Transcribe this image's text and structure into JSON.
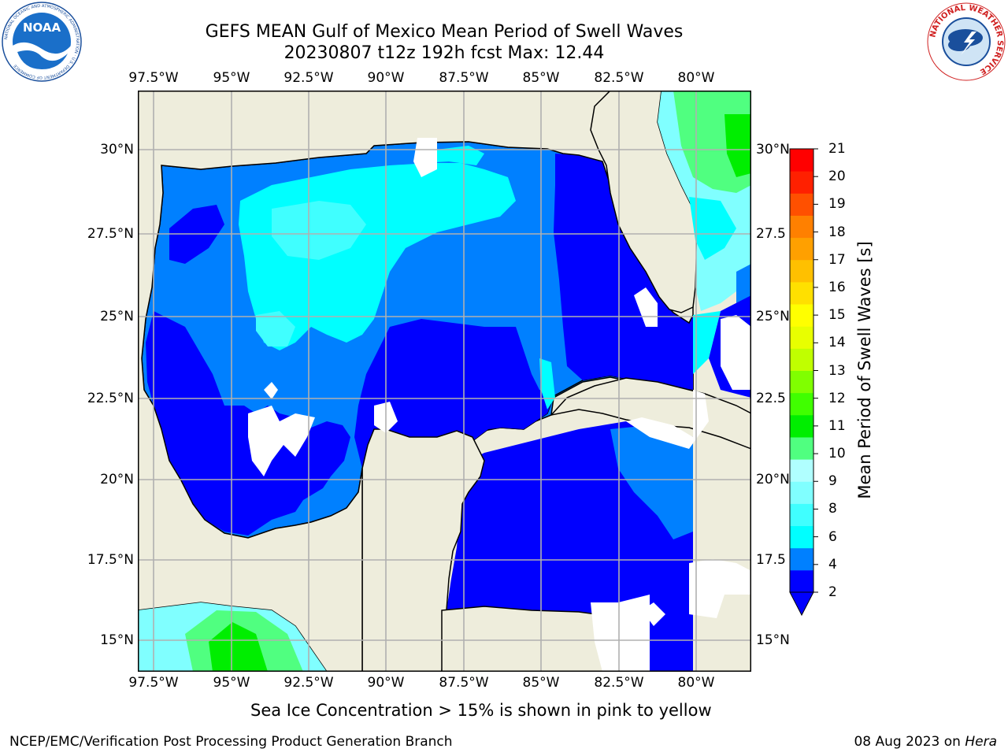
{
  "header": {
    "title_line1": "GEFS MEAN Gulf of Mexico Mean Period of Swell Waves",
    "title_line2": "20230807 t12z 192h fcst   Max: 12.44"
  },
  "logos": {
    "noaa_text": "NOAA",
    "noaa_ring_text": "NATIONAL OCEANIC AND ATMOSPHERIC ADMINISTRATION · U.S. DEPARTMENT OF COMMERCE",
    "nws_ring_text": "NATIONAL WEATHER SERVICE"
  },
  "map": {
    "lon_labels": [
      "97.5°W",
      "95°W",
      "92.5°W",
      "90°W",
      "87.5°W",
      "85°W",
      "82.5°W",
      "80°W"
    ],
    "lat_labels_left": [
      "30°N",
      "27.5°N",
      "25°N",
      "22.5°N",
      "20°N",
      "17.5°N",
      "15°N"
    ],
    "lat_labels_right": [
      "30°N",
      "27.5",
      "25°N",
      "22.5",
      "20°N",
      "17.5",
      "15°N"
    ],
    "colors": {
      "land": "#eeeddc",
      "missing": "#ffffff",
      "grid": "#b0b0b0"
    }
  },
  "colorbar": {
    "title": "Mean Period of Swell Waves [s]",
    "labels": [
      "21",
      "20",
      "19",
      "18",
      "17",
      "16",
      "15",
      "14",
      "13",
      "12",
      "11",
      "10",
      "9",
      "8",
      "6",
      "4",
      "2"
    ],
    "colors_bottom_to_top": [
      "#0000ff",
      "#0080ff",
      "#00ffff",
      "#40ffff",
      "#80ffff",
      "#b0ffff",
      "#50ff80",
      "#00ee00",
      "#40ff00",
      "#80ff00",
      "#c0ff00",
      "#e8ff00",
      "#ffff00",
      "#ffe000",
      "#ffc000",
      "#ffa000",
      "#ff8000",
      "#ff5000",
      "#ff2000",
      "#ff0000"
    ],
    "extend_color": "#0000ff"
  },
  "notes": {
    "sea_ice": "Sea Ice Concentration > 15% is shown in pink to yellow",
    "footer_left": "NCEP/EMC/Verification Post Processing Product Generation Branch",
    "footer_date": "08 Aug 2023 on ",
    "footer_machine": "Hera"
  }
}
